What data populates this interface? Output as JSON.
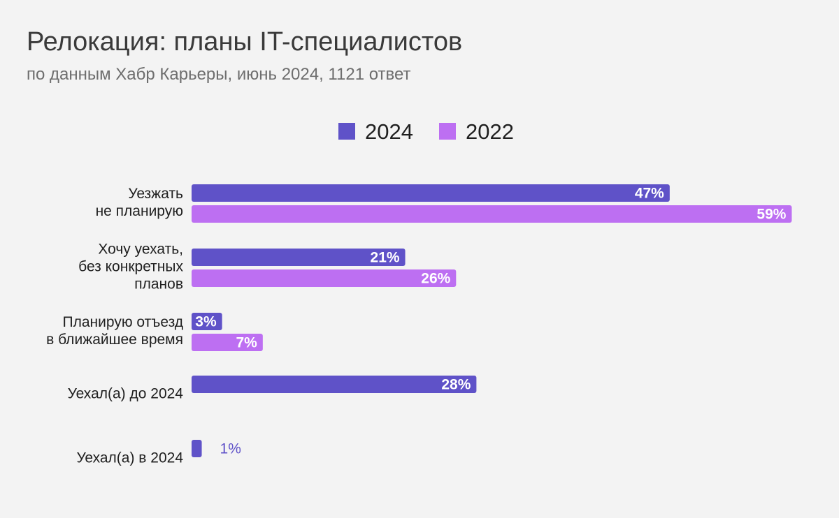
{
  "chart_data": {
    "type": "bar",
    "orientation": "horizontal",
    "title": "Релокация: планы IT-специалистов",
    "subtitle": "по данным Хабр Карьеры, июнь 2024, 1121 ответ",
    "legend_position": "top-center",
    "xlim": [
      0,
      60
    ],
    "grid": false,
    "categories": [
      [
        "Уезжать",
        "не планирую"
      ],
      [
        "Хочу уехать,",
        "без конкретных",
        "планов"
      ],
      [
        "Планирую отъезд",
        "в ближайшее время"
      ],
      [
        "Уехал(а) до 2024"
      ],
      [
        "Уехал(а) в 2024"
      ]
    ],
    "series": [
      {
        "name": "2024",
        "color": "#5f52c8",
        "values": [
          47,
          21,
          3,
          28,
          1
        ],
        "labels": [
          "47%",
          "21%",
          "3%",
          "28%",
          "1%"
        ]
      },
      {
        "name": "2022",
        "color": "#bd6ff2",
        "values": [
          59,
          26,
          7,
          null,
          null
        ],
        "labels": [
          "59%",
          "26%",
          "7%",
          "",
          ""
        ]
      }
    ]
  }
}
